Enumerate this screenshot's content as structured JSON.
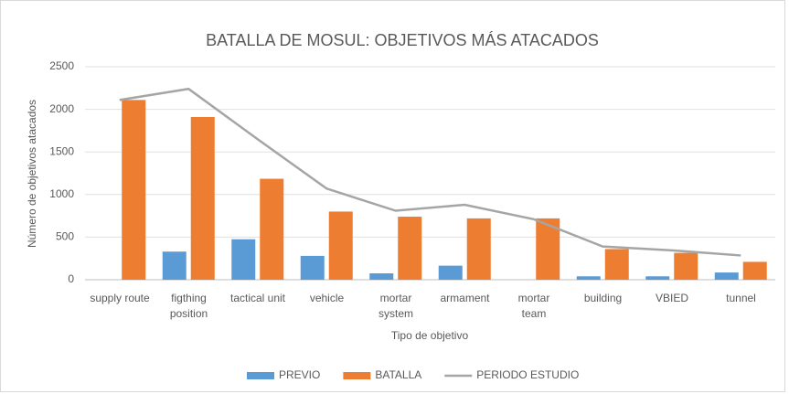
{
  "chart_data": {
    "type": "bar",
    "title": "BATALLA DE MOSUL: OBJETIVOS MÁS ATACADOS",
    "x_label": "Tipo de objetivo",
    "y_label": "Número de objetivos atacados",
    "categories": [
      "supply route",
      "figthing\nposition",
      "tactical unit",
      "vehicle",
      "mortar\nsystem",
      "armament",
      "mortar\nteam",
      "building",
      "VBIED",
      "tunnel"
    ],
    "series": [
      {
        "name": "PREVIO",
        "color": "#5b9bd5",
        "type": "bar",
        "values": [
          0,
          330,
          475,
          280,
          75,
          165,
          0,
          40,
          40,
          85
        ]
      },
      {
        "name": "BATALLA",
        "color": "#ed7d31",
        "type": "bar",
        "values": [
          2110,
          1910,
          1185,
          800,
          740,
          720,
          720,
          360,
          315,
          210
        ]
      },
      {
        "name": "PERIODO ESTUDIO",
        "color": "#a5a5a5",
        "type": "line",
        "values": [
          2110,
          2240,
          1650,
          1070,
          810,
          880,
          710,
          390,
          345,
          285
        ]
      }
    ],
    "ylim": [
      0,
      2500
    ],
    "yticks": [
      0,
      500,
      1000,
      1500,
      2000,
      2500
    ],
    "grid": true,
    "legend": "bottom"
  }
}
